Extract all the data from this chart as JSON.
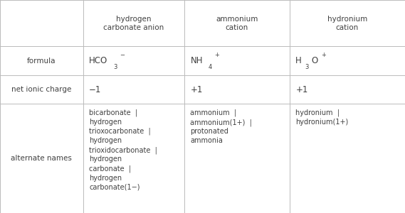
{
  "col_headers": [
    "",
    "hydrogen\ncarbonate anion",
    "ammonium\ncation",
    "hydronium\ncation"
  ],
  "row_labels": [
    "formula",
    "net ionic charge",
    "alternate names"
  ],
  "charge_row": [
    "−1",
    "+1",
    "+1"
  ],
  "alt_names_row": [
    "bicarbonate  |\nhydrogen\ntrioxocarbonate  |\nhydrogen\ntrioxidocarbonate  |\nhydrogen\ncarbonate  |\nhydrogen\ncarbonate(1−)",
    "ammonium  |\nammonium(1+)  |\nprotonated\nammonia",
    "hydronium  |\nhydronium(1+)"
  ],
  "bg_color": "#ffffff",
  "line_color": "#bbbbbb",
  "text_color": "#404040",
  "font_size": 7.5
}
